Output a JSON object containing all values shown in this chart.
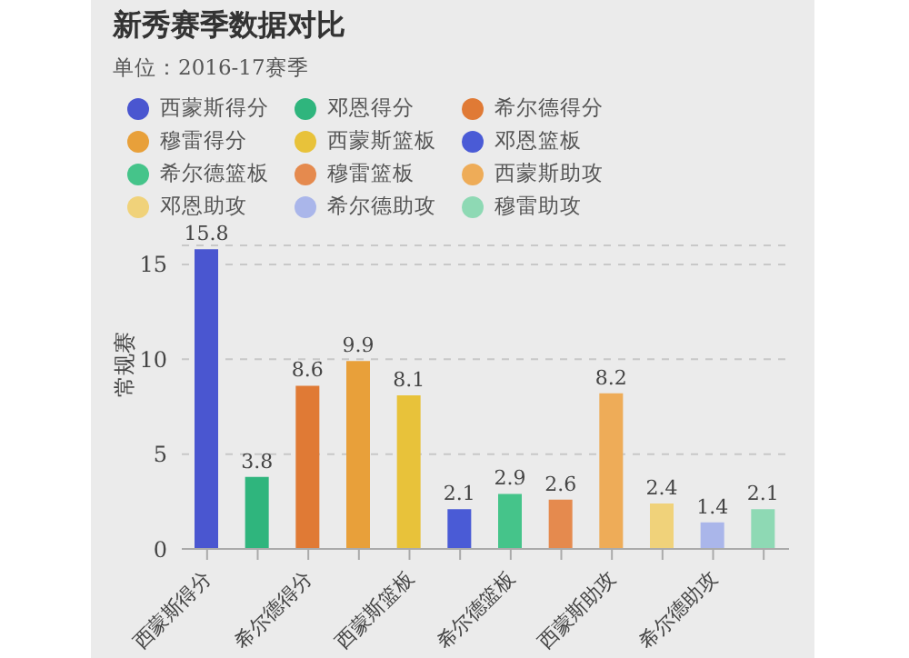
{
  "chart_data": {
    "type": "bar",
    "title": "新秀赛季数据对比",
    "subtitle": "单位：2016-17赛季",
    "ylabel": "常规赛",
    "categories": [
      "西蒙斯得分",
      null,
      "希尔德得分",
      null,
      "西蒙斯篮板",
      null,
      "希尔德篮板",
      null,
      "西蒙斯助攻",
      null,
      "希尔德助攻",
      null
    ],
    "stacked": true,
    "series": [
      {
        "name": "西蒙斯得分",
        "color": "#4a56d0",
        "values": [
          15.8,
          null,
          null,
          null,
          null,
          null,
          null,
          null,
          null,
          null,
          null,
          null
        ]
      },
      {
        "name": "邓恩得分",
        "color": "#2fb57d",
        "values": [
          null,
          3.8,
          null,
          null,
          null,
          null,
          null,
          null,
          null,
          null,
          null,
          null
        ]
      },
      {
        "name": "希尔德得分",
        "color": "#e07a35",
        "values": [
          null,
          null,
          8.6,
          null,
          null,
          null,
          null,
          null,
          null,
          null,
          null,
          null
        ]
      },
      {
        "name": "穆雷得分",
        "color": "#e8a03a",
        "values": [
          null,
          null,
          null,
          9.9,
          null,
          null,
          null,
          null,
          null,
          null,
          null,
          null
        ]
      },
      {
        "name": "西蒙斯篮板",
        "color": "#e8c23a",
        "values": [
          null,
          null,
          null,
          null,
          8.1,
          null,
          null,
          null,
          null,
          null,
          null,
          null
        ]
      },
      {
        "name": "邓恩篮板",
        "color": "#4a5bd6",
        "values": [
          null,
          null,
          null,
          null,
          null,
          2.1,
          null,
          null,
          null,
          null,
          null,
          null
        ]
      },
      {
        "name": "希尔德篮板",
        "color": "#45c48a",
        "values": [
          null,
          null,
          null,
          null,
          null,
          null,
          2.9,
          null,
          null,
          null,
          null,
          null
        ]
      },
      {
        "name": "穆雷篮板",
        "color": "#e58a4e",
        "values": [
          null,
          null,
          null,
          null,
          null,
          null,
          null,
          2.6,
          null,
          null,
          null,
          null
        ]
      },
      {
        "name": "西蒙斯助攻",
        "color": "#eeac58",
        "values": [
          null,
          null,
          null,
          null,
          null,
          null,
          null,
          null,
          8.2,
          null,
          null,
          null
        ]
      },
      {
        "name": "邓恩助攻",
        "color": "#f0d27a",
        "values": [
          null,
          null,
          null,
          null,
          null,
          null,
          null,
          null,
          null,
          2.4,
          null,
          null
        ]
      },
      {
        "name": "希尔德助攻",
        "color": "#aab6ea",
        "values": [
          null,
          null,
          null,
          null,
          null,
          null,
          null,
          null,
          null,
          null,
          1.4,
          null
        ]
      },
      {
        "name": "穆雷助攻",
        "color": "#8ed9b4",
        "values": [
          null,
          null,
          null,
          null,
          null,
          null,
          null,
          null,
          null,
          null,
          null,
          2.1
        ]
      }
    ],
    "ylim": [
      0,
      16
    ],
    "yticks": [
      0,
      5,
      10,
      15
    ],
    "grid": "y",
    "legend": "top left",
    "data_labels": true
  }
}
